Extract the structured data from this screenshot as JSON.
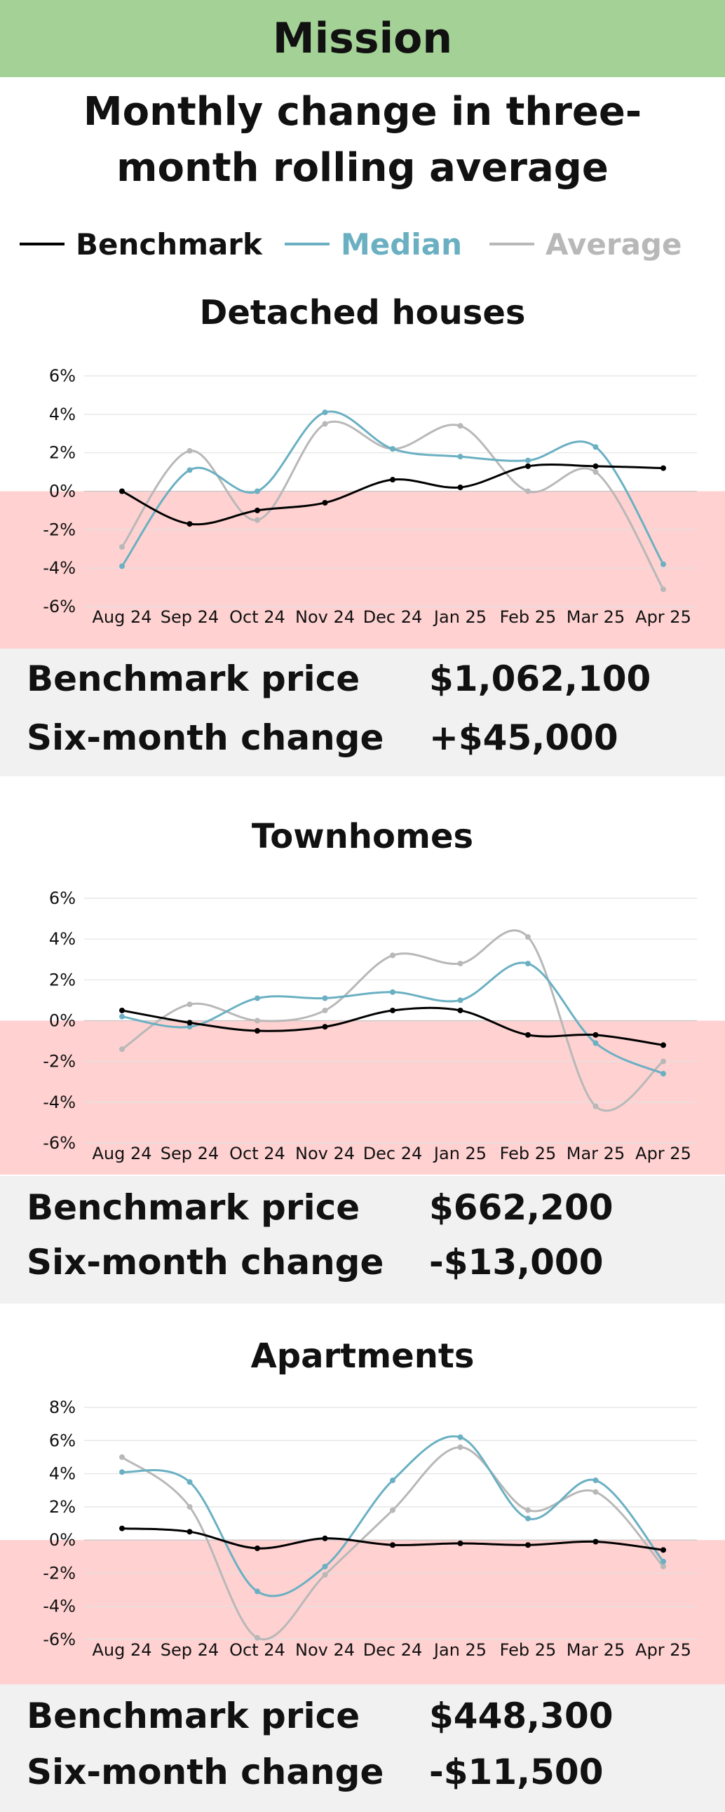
{
  "header": {
    "title": "Mission"
  },
  "subtitle": "Monthly change in three-month rolling average",
  "legend": [
    {
      "label": "Benchmark",
      "color": "#000000"
    },
    {
      "label": "Median",
      "color": "#6ab0c2"
    },
    {
      "label": "Average",
      "color": "#b8b8b8"
    }
  ],
  "colors": {
    "header_bg": "#a3d196",
    "negative_zone": "#ffd1d1",
    "panel_bg": "#f1f1f1",
    "grid": "#e2e2e2"
  },
  "sections": [
    {
      "title": "Detached houses",
      "info": {
        "price_label": "Benchmark price",
        "price_value": "$1,062,100",
        "change_label": "Six-month change",
        "change_value": "+$45,000"
      }
    },
    {
      "title": "Townhomes",
      "info": {
        "price_label": "Benchmark price",
        "price_value": "$662,200",
        "change_label": "Six-month change",
        "change_value": "-$13,000"
      }
    },
    {
      "title": "Apartments",
      "info": {
        "price_label": "Benchmark price",
        "price_value": "$448,300",
        "change_label": "Six-month change",
        "change_value": "-$11,500"
      }
    }
  ],
  "chart_data": [
    {
      "type": "line",
      "title": "Detached houses",
      "categories": [
        "Aug 24",
        "Sep 24",
        "Oct 24",
        "Nov 24",
        "Dec 24",
        "Jan 25",
        "Feb 25",
        "Mar 25",
        "Apr 25"
      ],
      "yticks": [
        "6%",
        "4%",
        "2%",
        "0%",
        "-2%",
        "-4%",
        "-6%"
      ],
      "ylim": [
        -6,
        6
      ],
      "series": [
        {
          "name": "Benchmark",
          "color": "#000000",
          "values": [
            0.0,
            -1.7,
            -1.0,
            -0.6,
            0.6,
            0.2,
            1.3,
            1.3,
            1.2
          ]
        },
        {
          "name": "Median",
          "color": "#6ab0c2",
          "values": [
            -3.9,
            1.1,
            0.0,
            4.1,
            2.2,
            1.8,
            1.6,
            2.3,
            -3.8
          ]
        },
        {
          "name": "Average",
          "color": "#b8b8b8",
          "values": [
            -2.9,
            2.1,
            -1.5,
            3.5,
            2.2,
            3.4,
            0.0,
            1.0,
            -5.1
          ]
        }
      ]
    },
    {
      "type": "line",
      "title": "Townhomes",
      "categories": [
        "Aug 24",
        "Sep 24",
        "Oct 24",
        "Nov 24",
        "Dec 24",
        "Jan 25",
        "Feb 25",
        "Mar 25",
        "Apr 25"
      ],
      "yticks": [
        "6%",
        "4%",
        "2%",
        "0%",
        "-2%",
        "-4%",
        "-6%"
      ],
      "ylim": [
        -6,
        6
      ],
      "series": [
        {
          "name": "Benchmark",
          "color": "#000000",
          "values": [
            0.5,
            -0.1,
            -0.5,
            -0.3,
            0.5,
            0.5,
            -0.7,
            -0.7,
            -1.2
          ]
        },
        {
          "name": "Median",
          "color": "#6ab0c2",
          "values": [
            0.2,
            -0.3,
            1.1,
            1.1,
            1.4,
            1.0,
            2.8,
            -1.1,
            -2.6
          ]
        },
        {
          "name": "Average",
          "color": "#b8b8b8",
          "values": [
            -1.4,
            0.8,
            0.0,
            0.5,
            3.2,
            2.8,
            4.1,
            -4.2,
            -2.0
          ]
        }
      ]
    },
    {
      "type": "line",
      "title": "Apartments",
      "categories": [
        "Aug 24",
        "Sep 24",
        "Oct 24",
        "Nov 24",
        "Dec 24",
        "Jan 25",
        "Feb 25",
        "Mar 25",
        "Apr 25"
      ],
      "yticks": [
        "8%",
        "6%",
        "4%",
        "2%",
        "0%",
        "-2%",
        "-4%",
        "-6%"
      ],
      "ylim": [
        -6,
        8
      ],
      "series": [
        {
          "name": "Benchmark",
          "color": "#000000",
          "values": [
            0.7,
            0.5,
            -0.5,
            0.1,
            -0.3,
            -0.2,
            -0.3,
            -0.1,
            -0.6
          ]
        },
        {
          "name": "Median",
          "color": "#6ab0c2",
          "values": [
            4.1,
            3.5,
            -3.1,
            -1.6,
            3.6,
            6.2,
            1.3,
            3.6,
            -1.3
          ]
        },
        {
          "name": "Average",
          "color": "#b8b8b8",
          "values": [
            5.0,
            2.0,
            -5.9,
            -2.1,
            1.8,
            5.6,
            1.8,
            2.9,
            -1.6
          ]
        }
      ]
    }
  ]
}
